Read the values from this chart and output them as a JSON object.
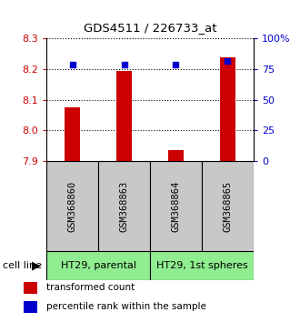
{
  "title": "GDS4511 / 226733_at",
  "samples": [
    "GSM368860",
    "GSM368863",
    "GSM368864",
    "GSM368865"
  ],
  "transformed_counts": [
    8.075,
    8.195,
    7.935,
    8.24
  ],
  "percentile_ranks": [
    79,
    79,
    79,
    82
  ],
  "y_min": 7.9,
  "y_max": 8.3,
  "y_ticks": [
    7.9,
    8.0,
    8.1,
    8.2,
    8.3
  ],
  "right_y_ticks": [
    0,
    25,
    50,
    75,
    100
  ],
  "right_y_labels": [
    "0",
    "25",
    "50",
    "75",
    "100%"
  ],
  "cell_lines": [
    "HT29, parental",
    "HT29, 1st spheres"
  ],
  "cell_line_groups": [
    [
      0,
      1
    ],
    [
      2,
      3
    ]
  ],
  "bar_color": "#CC0000",
  "marker_color": "#0000CC",
  "baseline": 7.9,
  "legend_items": [
    "transformed count",
    "percentile rank within the sample"
  ],
  "legend_colors": [
    "#CC0000",
    "#0000CC"
  ],
  "label_bg": "#C8C8C8",
  "cell_line_bg": "#90EE90",
  "bg_color": "#FFFFFF"
}
